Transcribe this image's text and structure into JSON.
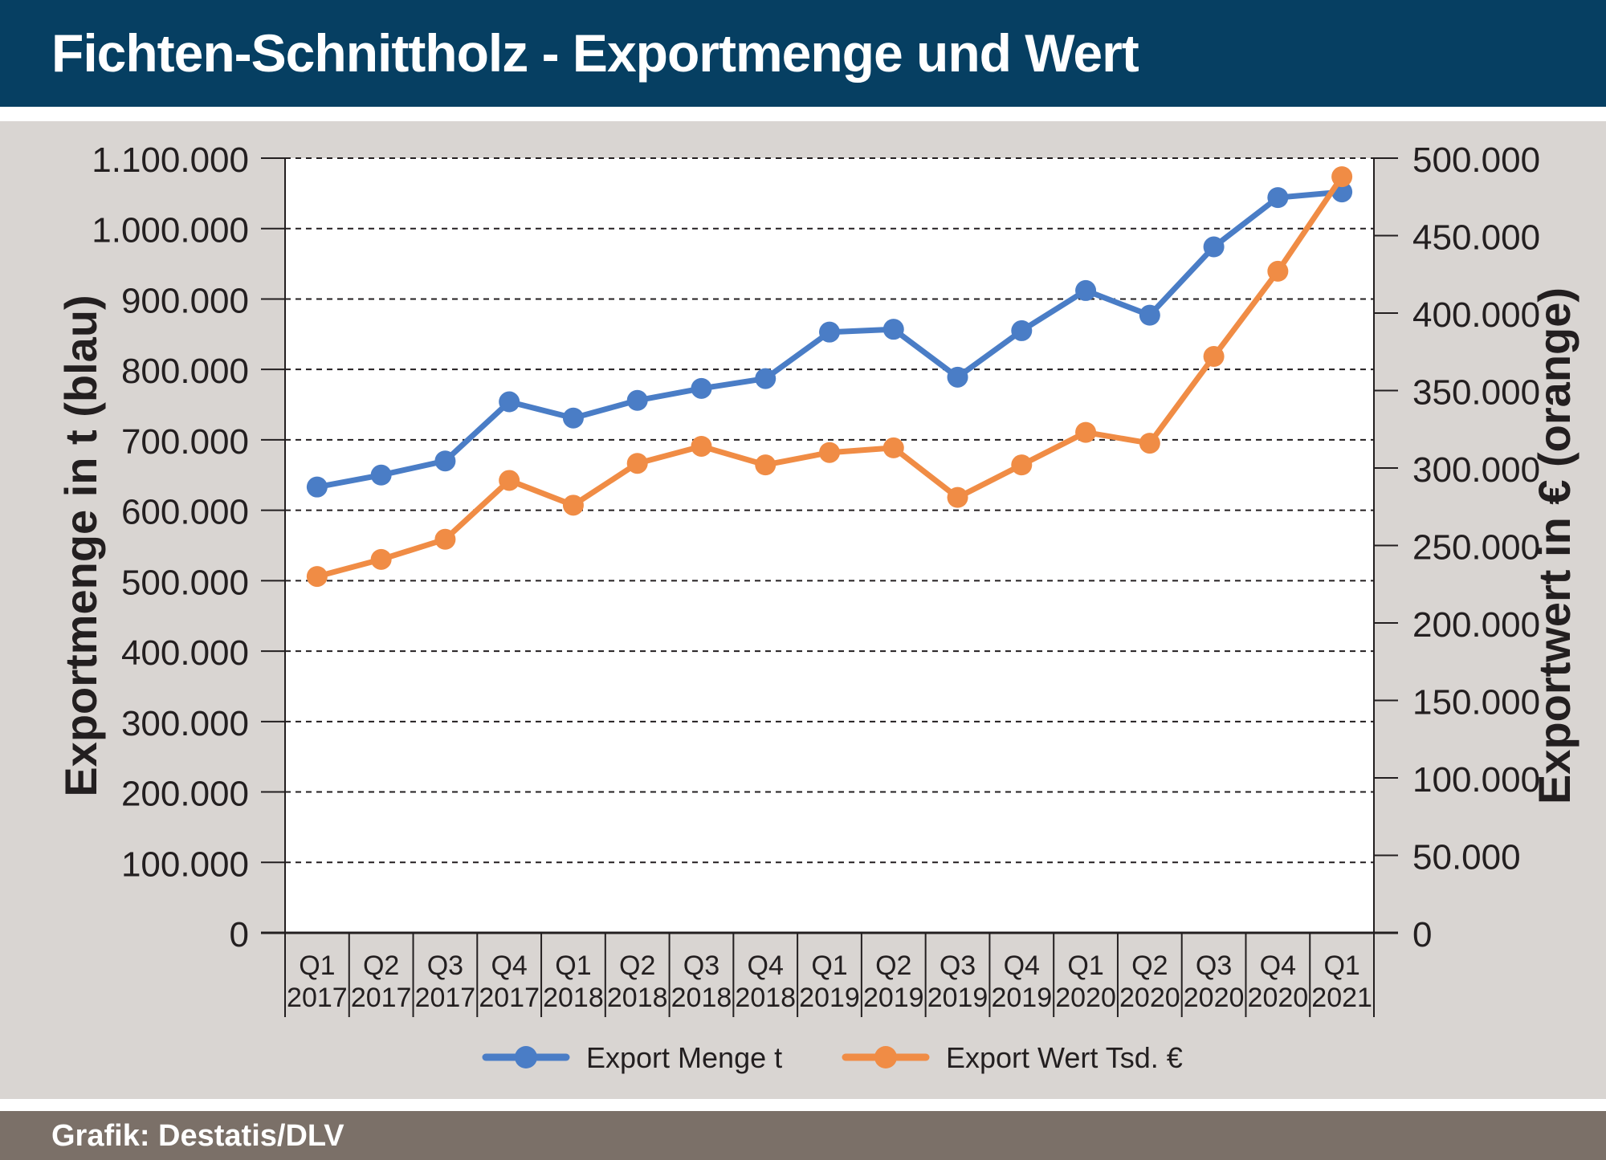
{
  "header": {
    "title": "Fichten-Schnittholz - Exportmenge und Wert"
  },
  "footer": {
    "source": "Grafik: Destatis/DLV"
  },
  "colors": {
    "header_bg": "#063f62",
    "panel_bg": "#d9d5d2",
    "footer_bg": "#7b7068",
    "series_blue": "#4a7dc6",
    "series_orange": "#f08c45"
  },
  "chart_data": {
    "type": "line",
    "title": "Fichten-Schnittholz - Exportmenge und Wert",
    "ylabel": "Exportmenge in t (blau)",
    "y2label": "Exportwert in € (orange)",
    "ylim": [
      0,
      1100000
    ],
    "y2lim": [
      0,
      500000
    ],
    "yticks": [
      "0",
      "100.000",
      "200.000",
      "300.000",
      "400.000",
      "500.000",
      "600.000",
      "700.000",
      "800.000",
      "900.000",
      "1.000.000",
      "1.100.000"
    ],
    "y2ticks": [
      "0",
      "50.000",
      "100.000",
      "150.000",
      "200.000",
      "250.000",
      "300.000",
      "350.000",
      "400.000",
      "450.000",
      "500.000"
    ],
    "categories": [
      [
        "Q1",
        "2017"
      ],
      [
        "Q2",
        "2017"
      ],
      [
        "Q3",
        "2017"
      ],
      [
        "Q4",
        "2017"
      ],
      [
        "Q1",
        "2018"
      ],
      [
        "Q2",
        "2018"
      ],
      [
        "Q3",
        "2018"
      ],
      [
        "Q4",
        "2018"
      ],
      [
        "Q1",
        "2019"
      ],
      [
        "Q2",
        "2019"
      ],
      [
        "Q3",
        "2019"
      ],
      [
        "Q4",
        "2019"
      ],
      [
        "Q1",
        "2020"
      ],
      [
        "Q2",
        "2020"
      ],
      [
        "Q3",
        "2020"
      ],
      [
        "Q4",
        "2020"
      ],
      [
        "Q1",
        "2021"
      ]
    ],
    "grid": true,
    "legend_position": "bottom",
    "series": [
      {
        "name": "Export Menge t",
        "axis": "left",
        "color": "#4a7dc6",
        "values": [
          633000,
          650000,
          670000,
          754000,
          731000,
          756000,
          773000,
          787000,
          853000,
          857000,
          789000,
          855000,
          912000,
          877000,
          974000,
          1044000,
          1052000
        ]
      },
      {
        "name": "Export Wert Tsd. €",
        "axis": "right",
        "color": "#f08c45",
        "values": [
          230000,
          241000,
          254000,
          292000,
          276000,
          303000,
          314000,
          302000,
          310000,
          313000,
          281000,
          302000,
          323000,
          316000,
          372000,
          427000,
          488000
        ]
      }
    ]
  }
}
